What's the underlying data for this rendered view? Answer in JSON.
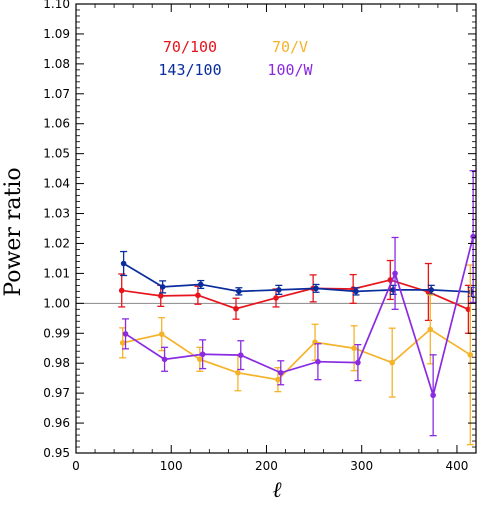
{
  "chart_data": {
    "type": "line",
    "title": "",
    "xlabel": "ℓ",
    "ylabel": "Power ratio",
    "xlim": [
      0,
      420
    ],
    "ylim": [
      0.95,
      1.1
    ],
    "x_ticks": [
      0,
      100,
      200,
      300,
      400
    ],
    "y_ticks": [
      0.95,
      0.96,
      0.97,
      0.98,
      0.99,
      1.0,
      1.01,
      1.02,
      1.03,
      1.04,
      1.05,
      1.06,
      1.07,
      1.08,
      1.09,
      1.1
    ],
    "x_tick_labels": [
      "0",
      "100",
      "200",
      "300",
      "400"
    ],
    "y_tick_labels": [
      "0.95",
      "0.96",
      "0.97",
      "0.98",
      "0.99",
      "1.00",
      "1.01",
      "1.02",
      "1.03",
      "1.04",
      "1.05",
      "1.06",
      "1.07",
      "1.08",
      "1.09",
      "1.10"
    ],
    "reference_line": 1.0,
    "grid": false,
    "legend_position": "top-left",
    "series": [
      {
        "name": "70/100",
        "color": "#e8141c",
        "x": [
          48,
          89,
          128,
          168,
          210,
          249,
          291,
          330,
          370,
          412
        ],
        "y": [
          1.0043,
          1.0025,
          1.0027,
          0.9982,
          1.0018,
          1.005,
          1.0048,
          1.0078,
          1.0038,
          0.998
        ],
        "err": [
          0.0055,
          0.0035,
          0.003,
          0.0035,
          0.003,
          0.0045,
          0.0048,
          0.0065,
          0.0095,
          0.008
        ]
      },
      {
        "name": "143/100",
        "color": "#0a2d9e",
        "x": [
          50,
          91,
          131,
          171,
          213,
          252,
          294,
          333,
          373,
          415
        ],
        "y": [
          1.0133,
          1.0055,
          1.0063,
          1.004,
          1.0045,
          1.005,
          1.004,
          1.0045,
          1.0045,
          1.0038
        ],
        "err": [
          0.004,
          0.002,
          0.0013,
          0.0012,
          0.0015,
          0.0013,
          0.0012,
          0.0015,
          0.0015,
          0.0015
        ]
      },
      {
        "name": "70/V",
        "color": "#f5b32a",
        "x": [
          49,
          90,
          130,
          170,
          212,
          251,
          292,
          332,
          372,
          414
        ],
        "y": [
          0.9868,
          0.9897,
          0.9813,
          0.9768,
          0.9745,
          0.987,
          0.985,
          0.9802,
          0.9913,
          0.9828
        ],
        "err": [
          0.005,
          0.0055,
          0.004,
          0.006,
          0.004,
          0.006,
          0.0075,
          0.0115,
          0.0115,
          0.03
        ]
      },
      {
        "name": "100/W",
        "color": "#8a2be2",
        "x": [
          52,
          93,
          133,
          173,
          215,
          254,
          296,
          335,
          375,
          417
        ],
        "y": [
          0.9898,
          0.9813,
          0.983,
          0.9827,
          0.9768,
          0.9805,
          0.9802,
          1.01,
          0.9693,
          1.0223
        ],
        "err": [
          0.005,
          0.004,
          0.0048,
          0.0048,
          0.004,
          0.006,
          0.006,
          0.012,
          0.0135,
          0.022
        ]
      }
    ]
  }
}
